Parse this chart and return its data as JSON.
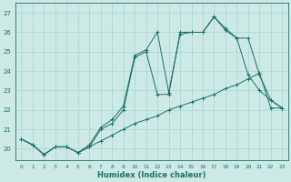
{
  "background_color": "#cce9e6",
  "grid_color": "#a8d4d0",
  "line_color": "#1a7068",
  "xlabel": "Humidex (Indice chaleur)",
  "xlim": [
    -0.5,
    23.5
  ],
  "ylim": [
    19.4,
    27.5
  ],
  "xticks": [
    0,
    1,
    2,
    3,
    4,
    5,
    6,
    7,
    8,
    9,
    10,
    11,
    12,
    13,
    14,
    15,
    16,
    17,
    18,
    19,
    20,
    21,
    22,
    23
  ],
  "yticks": [
    20,
    21,
    22,
    23,
    24,
    25,
    26,
    27
  ],
  "line_diag_x": [
    0,
    1,
    2,
    3,
    4,
    5,
    6,
    7,
    8,
    9,
    10,
    11,
    12,
    13,
    14,
    15,
    16,
    17,
    18,
    19,
    20,
    21,
    22,
    23
  ],
  "line_diag_y": [
    20.5,
    20.2,
    19.7,
    20.1,
    20.1,
    19.8,
    20.1,
    20.4,
    20.7,
    21.0,
    21.3,
    21.5,
    21.7,
    22.0,
    22.2,
    22.4,
    22.6,
    22.8,
    23.1,
    23.3,
    23.6,
    23.9,
    22.1,
    22.1
  ],
  "line_peak1_x": [
    0,
    1,
    2,
    3,
    4,
    5,
    6,
    7,
    8,
    9,
    10,
    11,
    12,
    13,
    14,
    15,
    16,
    17,
    18,
    19,
    20,
    21,
    22,
    23
  ],
  "line_peak1_y": [
    20.5,
    20.2,
    19.7,
    20.1,
    20.1,
    19.8,
    20.1,
    21.0,
    21.3,
    22.0,
    24.7,
    25.0,
    22.8,
    22.8,
    26.0,
    26.0,
    26.0,
    26.8,
    26.1,
    25.7,
    23.8,
    23.0,
    22.5,
    22.1
  ],
  "line_peak2_x": [
    0,
    1,
    2,
    3,
    4,
    5,
    6,
    7,
    8,
    9,
    10,
    11,
    12,
    13,
    14,
    15,
    16,
    17,
    18,
    19,
    20,
    21,
    22,
    23
  ],
  "line_peak2_y": [
    20.5,
    20.2,
    19.7,
    20.1,
    20.1,
    19.8,
    20.2,
    21.1,
    21.5,
    22.2,
    24.8,
    25.1,
    26.0,
    22.9,
    25.9,
    26.0,
    26.0,
    26.8,
    26.2,
    25.7,
    25.7,
    23.8,
    22.5,
    22.1
  ]
}
